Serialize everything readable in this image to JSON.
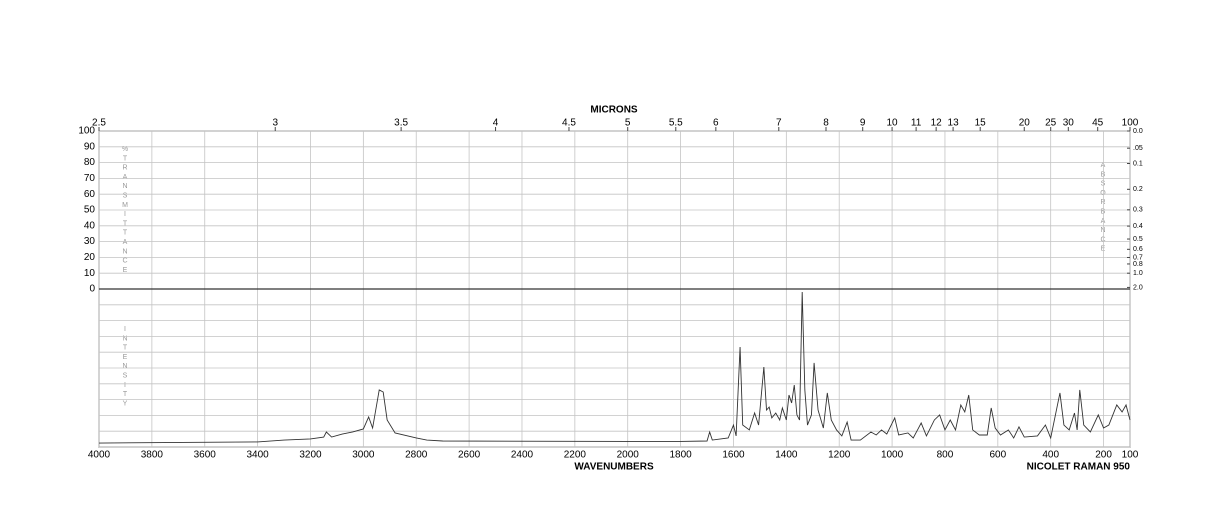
{
  "chart_data": {
    "type": "line",
    "top_axis_label": "MICRONS",
    "x_label": "WAVENUMBERS",
    "instrument": "NICOLET RAMAN 950",
    "left_axis_label": "%TRANSMITTANCE",
    "right_axis_label": "ABSORBANCE",
    "lower_axis_label": "INTENSITY",
    "xlim": [
      4000,
      100
    ],
    "xticks": [
      4000,
      3800,
      3600,
      3400,
      3200,
      3000,
      2800,
      2600,
      2400,
      2200,
      2000,
      1800,
      1600,
      1400,
      1200,
      1000,
      800,
      600,
      400,
      200,
      100
    ],
    "x2ticks": [
      2.5,
      3,
      3.5,
      4,
      4.5,
      5,
      5.5,
      6,
      7,
      8,
      9,
      10,
      11,
      12,
      13,
      15,
      20,
      25,
      30,
      45,
      100
    ],
    "ylim": [
      0,
      100
    ],
    "yticks": [
      0,
      10,
      20,
      30,
      40,
      50,
      60,
      70,
      80,
      90,
      100
    ],
    "y2ticks": [
      {
        "value": 0,
        "label": "0.0"
      },
      {
        "value": 0.05,
        "label": ".05"
      },
      0.1,
      0.2,
      0.3,
      0.4,
      0.5,
      0.6,
      0.7,
      0.8,
      {
        "value": 1,
        "label": "1.0"
      },
      {
        "value": 2,
        "label": "2.0"
      }
    ],
    "y3lim": [
      0,
      100
    ],
    "grid": true,
    "x": [
      4000,
      3400,
      3300,
      3200,
      3150,
      3140,
      3120,
      3080,
      3040,
      3000,
      2980,
      2965,
      2940,
      2925,
      2910,
      2880,
      2800,
      2760,
      2700,
      2000,
      1800,
      1700,
      1690,
      1680,
      1620,
      1600,
      1590,
      1575,
      1565,
      1540,
      1520,
      1505,
      1485,
      1475,
      1465,
      1455,
      1440,
      1425,
      1415,
      1400,
      1390,
      1380,
      1370,
      1360,
      1350,
      1340,
      1330,
      1320,
      1305,
      1295,
      1280,
      1260,
      1245,
      1230,
      1210,
      1190,
      1170,
      1155,
      1120,
      1080,
      1060,
      1040,
      1020,
      990,
      975,
      940,
      920,
      900,
      890,
      870,
      840,
      820,
      800,
      780,
      760,
      740,
      725,
      710,
      695,
      670,
      640,
      625,
      610,
      590,
      560,
      540,
      520,
      500,
      450,
      420,
      400,
      365,
      350,
      330,
      310,
      300,
      290,
      275,
      250,
      220,
      200,
      180,
      150,
      130,
      115,
      100
    ],
    "series": [
      {
        "color": "#333333",
        "values": [
          2.5,
          3.2,
          4.4,
          5.1,
          6.3,
          9.5,
          6.3,
          8.2,
          9.5,
          11.4,
          19.0,
          12.0,
          36.1,
          34.8,
          17.1,
          8.9,
          5.7,
          4.4,
          3.8,
          3.5,
          3.5,
          3.8,
          9.5,
          4.4,
          5.7,
          13.9,
          7.0,
          63.3,
          13.9,
          10.8,
          21.5,
          13.9,
          50.6,
          23.4,
          25.3,
          18.4,
          21.5,
          17.1,
          24.7,
          17.1,
          32.9,
          27.9,
          39.2,
          20.3,
          17.1,
          98.1,
          36.1,
          13.9,
          20.3,
          53.2,
          23.4,
          12.0,
          34.2,
          17.1,
          10.8,
          7.0,
          15.8,
          4.4,
          4.4,
          9.5,
          7.6,
          10.8,
          8.2,
          18.4,
          7.6,
          8.9,
          5.7,
          12.0,
          15.2,
          7.0,
          17.1,
          20.3,
          10.8,
          17.1,
          10.8,
          26.6,
          22.2,
          32.9,
          10.8,
          7.6,
          7.6,
          24.7,
          12.0,
          7.6,
          10.8,
          5.7,
          12.7,
          6.3,
          7.0,
          13.9,
          5.7,
          34.2,
          13.9,
          10.8,
          21.5,
          10.8,
          36.1,
          13.9,
          9.5,
          20.3,
          12.0,
          13.9,
          26.6,
          22.2,
          26.6,
          17.1
        ]
      }
    ]
  }
}
